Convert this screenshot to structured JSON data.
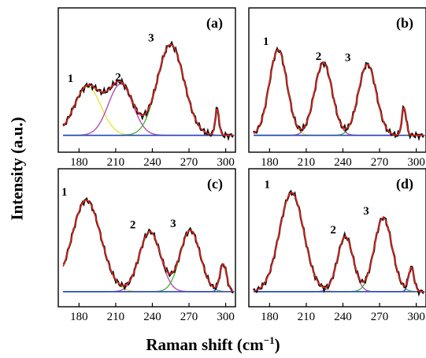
{
  "figure": {
    "ylabel": "Intensity (a.u.)",
    "xlabel_main": "Raman shift (cm",
    "xlabel_sup": "−1",
    "xlabel_close": ")"
  },
  "chart_data": [
    {
      "panel": "(a)",
      "type": "line",
      "xlim": [
        163,
        308
      ],
      "ylim": [
        0,
        1
      ],
      "x_ticks": [
        180,
        210,
        240,
        270,
        300
      ],
      "peak_labels": [
        "1",
        "2",
        "3"
      ],
      "colors": [
        "#e6e63c",
        "#b44cb4",
        "#50b43c",
        "#2040c8"
      ],
      "series": [
        {
          "center": 187,
          "width": 24,
          "height": 0.37
        },
        {
          "center": 214,
          "width": 22,
          "height": 0.39
        },
        {
          "center": 255,
          "width": 24,
          "height": 0.69
        },
        {
          "center": 293,
          "width": 3.5,
          "height": 0.2
        }
      ],
      "baseline": 0.08
    },
    {
      "panel": "(b)",
      "type": "line",
      "xlim": [
        163,
        308
      ],
      "ylim": [
        0,
        1
      ],
      "x_ticks": [
        180,
        210,
        240,
        270,
        300
      ],
      "peak_labels": [
        "1",
        "2",
        "3"
      ],
      "colors": [
        "#e6e63c",
        "#b44cb4",
        "#50b43c",
        "#2040c8"
      ],
      "series": [
        {
          "center": 187,
          "width": 16,
          "height": 0.65
        },
        {
          "center": 224,
          "width": 16,
          "height": 0.55
        },
        {
          "center": 260,
          "width": 16,
          "height": 0.54
        },
        {
          "center": 290,
          "width": 4,
          "height": 0.21
        }
      ],
      "baseline": 0.08
    },
    {
      "panel": "(c)",
      "type": "line",
      "xlim": [
        163,
        308
      ],
      "ylim": [
        0,
        1
      ],
      "x_ticks": [
        180,
        210,
        240,
        270,
        300
      ],
      "peak_labels": [
        "1",
        "2",
        "3"
      ],
      "colors": [
        "#e6e63c",
        "#b44cb4",
        "#50b43c",
        "#2040c8"
      ],
      "series": [
        {
          "center": 186,
          "width": 26,
          "height": 0.73
        },
        {
          "center": 238,
          "width": 19,
          "height": 0.48
        },
        {
          "center": 271,
          "width": 18,
          "height": 0.49
        },
        {
          "center": 298,
          "width": 6,
          "height": 0.22
        }
      ],
      "baseline": 0.07
    },
    {
      "panel": "(d)",
      "type": "line",
      "xlim": [
        163,
        308
      ],
      "ylim": [
        0,
        1
      ],
      "x_ticks": [
        180,
        210,
        240,
        270,
        300
      ],
      "peak_labels": [
        "1",
        "2",
        "3"
      ],
      "colors": [
        "#e6e63c",
        "#b44cb4",
        "#50b43c",
        "#2040c8"
      ],
      "series": [
        {
          "center": 198,
          "width": 22,
          "height": 0.79
        },
        {
          "center": 242,
          "width": 14,
          "height": 0.44
        },
        {
          "center": 273,
          "width": 16,
          "height": 0.59
        },
        {
          "center": 296,
          "width": 5,
          "height": 0.19
        }
      ],
      "baseline": 0.07
    }
  ]
}
